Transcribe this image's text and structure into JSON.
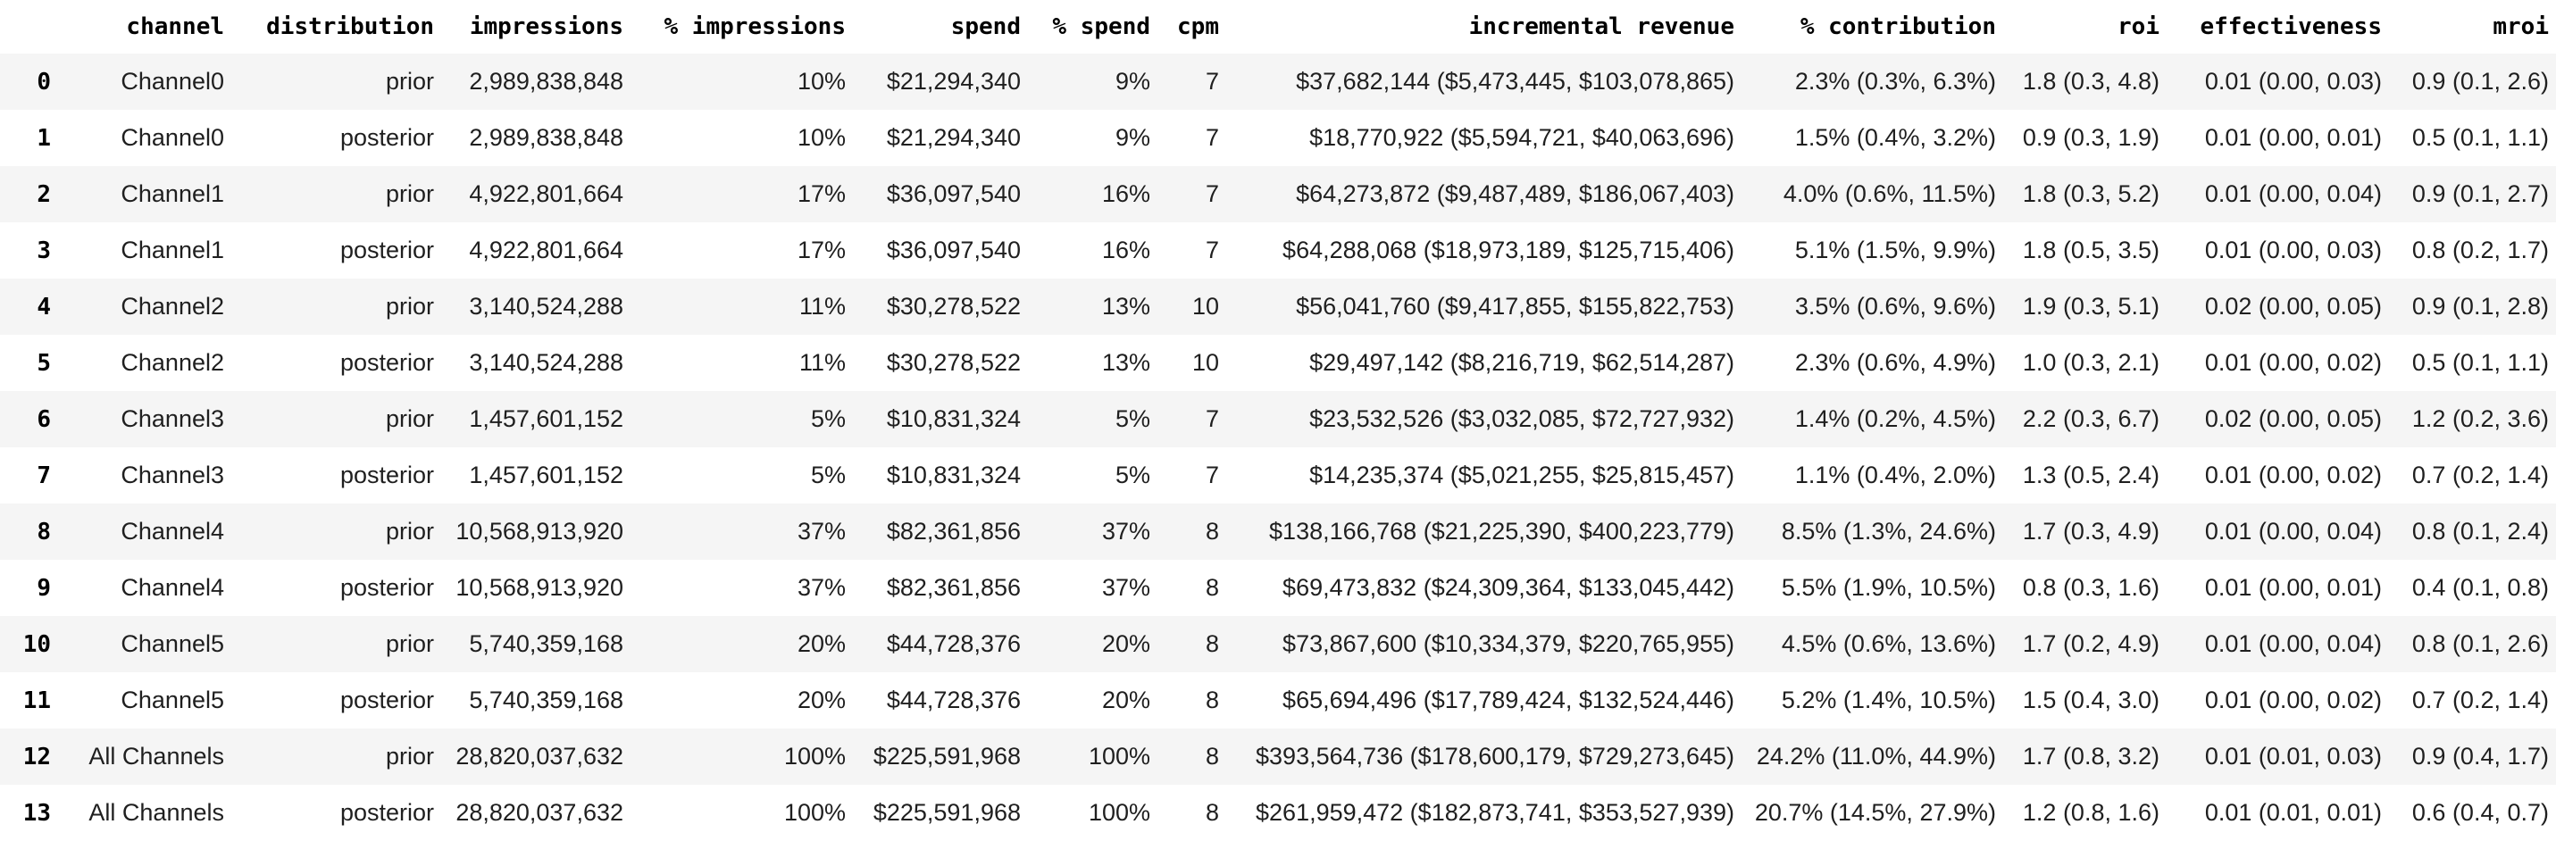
{
  "chart_data": {
    "type": "table",
    "columns": [
      "channel",
      "distribution",
      "impressions",
      "% impressions",
      "spend",
      "% spend",
      "cpm",
      "incremental revenue",
      "% contribution",
      "roi",
      "effectiveness",
      "mroi"
    ],
    "index": [
      "0",
      "1",
      "2",
      "3",
      "4",
      "5",
      "6",
      "7",
      "8",
      "9",
      "10",
      "11",
      "12",
      "13"
    ],
    "rows": [
      [
        "Channel0",
        "prior",
        "2,989,838,848",
        "10%",
        "$21,294,340",
        "9%",
        "7",
        "$37,682,144 ($5,473,445, $103,078,865)",
        "2.3% (0.3%, 6.3%)",
        "1.8 (0.3, 4.8)",
        "0.01 (0.00, 0.03)",
        "0.9 (0.1, 2.6)"
      ],
      [
        "Channel0",
        "posterior",
        "2,989,838,848",
        "10%",
        "$21,294,340",
        "9%",
        "7",
        "$18,770,922 ($5,594,721, $40,063,696)",
        "1.5% (0.4%, 3.2%)",
        "0.9 (0.3, 1.9)",
        "0.01 (0.00, 0.01)",
        "0.5 (0.1, 1.1)"
      ],
      [
        "Channel1",
        "prior",
        "4,922,801,664",
        "17%",
        "$36,097,540",
        "16%",
        "7",
        "$64,273,872 ($9,487,489, $186,067,403)",
        "4.0% (0.6%, 11.5%)",
        "1.8 (0.3, 5.2)",
        "0.01 (0.00, 0.04)",
        "0.9 (0.1, 2.7)"
      ],
      [
        "Channel1",
        "posterior",
        "4,922,801,664",
        "17%",
        "$36,097,540",
        "16%",
        "7",
        "$64,288,068 ($18,973,189, $125,715,406)",
        "5.1% (1.5%, 9.9%)",
        "1.8 (0.5, 3.5)",
        "0.01 (0.00, 0.03)",
        "0.8 (0.2, 1.7)"
      ],
      [
        "Channel2",
        "prior",
        "3,140,524,288",
        "11%",
        "$30,278,522",
        "13%",
        "10",
        "$56,041,760 ($9,417,855, $155,822,753)",
        "3.5% (0.6%, 9.6%)",
        "1.9 (0.3, 5.1)",
        "0.02 (0.00, 0.05)",
        "0.9 (0.1, 2.8)"
      ],
      [
        "Channel2",
        "posterior",
        "3,140,524,288",
        "11%",
        "$30,278,522",
        "13%",
        "10",
        "$29,497,142 ($8,216,719, $62,514,287)",
        "2.3% (0.6%, 4.9%)",
        "1.0 (0.3, 2.1)",
        "0.01 (0.00, 0.02)",
        "0.5 (0.1, 1.1)"
      ],
      [
        "Channel3",
        "prior",
        "1,457,601,152",
        "5%",
        "$10,831,324",
        "5%",
        "7",
        "$23,532,526 ($3,032,085, $72,727,932)",
        "1.4% (0.2%, 4.5%)",
        "2.2 (0.3, 6.7)",
        "0.02 (0.00, 0.05)",
        "1.2 (0.2, 3.6)"
      ],
      [
        "Channel3",
        "posterior",
        "1,457,601,152",
        "5%",
        "$10,831,324",
        "5%",
        "7",
        "$14,235,374 ($5,021,255, $25,815,457)",
        "1.1% (0.4%, 2.0%)",
        "1.3 (0.5, 2.4)",
        "0.01 (0.00, 0.02)",
        "0.7 (0.2, 1.4)"
      ],
      [
        "Channel4",
        "prior",
        "10,568,913,920",
        "37%",
        "$82,361,856",
        "37%",
        "8",
        "$138,166,768 ($21,225,390, $400,223,779)",
        "8.5% (1.3%, 24.6%)",
        "1.7 (0.3, 4.9)",
        "0.01 (0.00, 0.04)",
        "0.8 (0.1, 2.4)"
      ],
      [
        "Channel4",
        "posterior",
        "10,568,913,920",
        "37%",
        "$82,361,856",
        "37%",
        "8",
        "$69,473,832 ($24,309,364, $133,045,442)",
        "5.5% (1.9%, 10.5%)",
        "0.8 (0.3, 1.6)",
        "0.01 (0.00, 0.01)",
        "0.4 (0.1, 0.8)"
      ],
      [
        "Channel5",
        "prior",
        "5,740,359,168",
        "20%",
        "$44,728,376",
        "20%",
        "8",
        "$73,867,600 ($10,334,379, $220,765,955)",
        "4.5% (0.6%, 13.6%)",
        "1.7 (0.2, 4.9)",
        "0.01 (0.00, 0.04)",
        "0.8 (0.1, 2.6)"
      ],
      [
        "Channel5",
        "posterior",
        "5,740,359,168",
        "20%",
        "$44,728,376",
        "20%",
        "8",
        "$65,694,496 ($17,789,424, $132,524,446)",
        "5.2% (1.4%, 10.5%)",
        "1.5 (0.4, 3.0)",
        "0.01 (0.00, 0.02)",
        "0.7 (0.2, 1.4)"
      ],
      [
        "All Channels",
        "prior",
        "28,820,037,632",
        "100%",
        "$225,591,968",
        "100%",
        "8",
        "$393,564,736 ($178,600,179, $729,273,645)",
        "24.2% (11.0%, 44.9%)",
        "1.7 (0.8, 3.2)",
        "0.01 (0.01, 0.03)",
        "0.9 (0.4, 1.7)"
      ],
      [
        "All Channels",
        "posterior",
        "28,820,037,632",
        "100%",
        "$225,591,968",
        "100%",
        "8",
        "$261,959,472 ($182,873,741, $353,527,939)",
        "20.7% (14.5%, 27.9%)",
        "1.2 (0.8, 1.6)",
        "0.01 (0.01, 0.01)",
        "0.6 (0.4, 0.7)"
      ]
    ]
  },
  "colors": {
    "background": "#ffffff",
    "row_stripe": "#f5f5f5",
    "cell_text": "#1f1f1f",
    "header_text": "#000000"
  }
}
